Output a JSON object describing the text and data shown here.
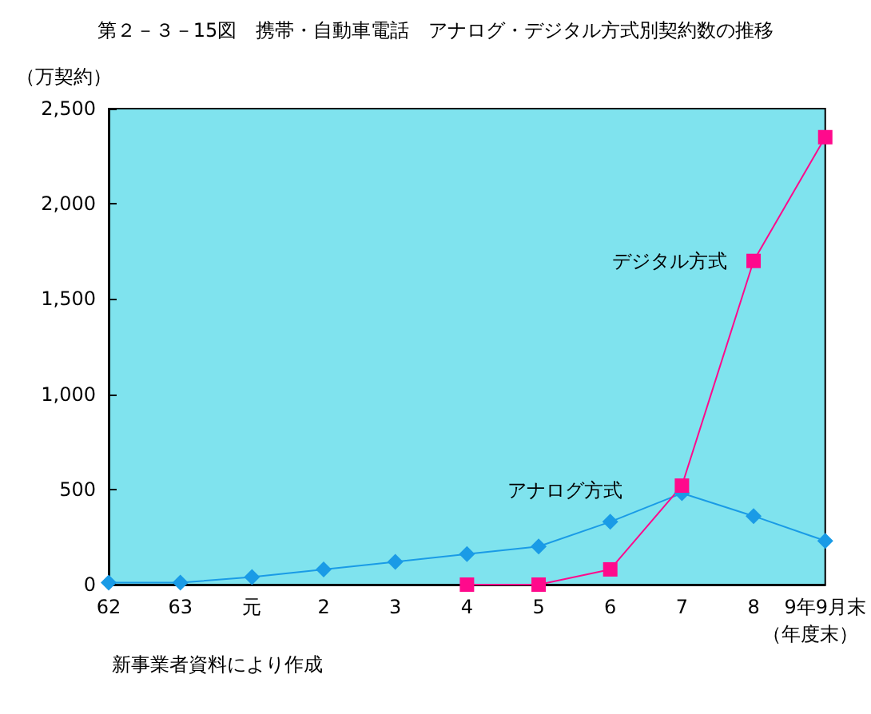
{
  "chart_data": {
    "type": "line",
    "title": "第２－３－15図　携帯・自動車電話　アナログ・デジタル方式別契約数の推移",
    "ylabel": "（万契約）",
    "xlabel": "（年度末）",
    "categories": [
      "62",
      "63",
      "元",
      "2",
      "3",
      "4",
      "5",
      "6",
      "7",
      "8",
      "9年9月末"
    ],
    "series": [
      {
        "name": "アナログ方式",
        "color": "#1a9be6",
        "marker": "diamond",
        "values": [
          10,
          10,
          40,
          80,
          120,
          160,
          200,
          330,
          480,
          360,
          230
        ]
      },
      {
        "name": "デジタル方式",
        "color": "#ff0a8c",
        "marker": "square",
        "values": [
          null,
          null,
          null,
          null,
          null,
          0,
          0,
          80,
          520,
          1700,
          2350
        ]
      }
    ],
    "ylim": [
      0,
      2500
    ],
    "yticks": [
      0,
      {
        "value": 500,
        "label": "500"
      },
      {
        "value": 1000,
        "label": "1,000"
      },
      {
        "value": 1500,
        "label": "1,500"
      },
      {
        "value": 2000,
        "label": "2,000"
      },
      {
        "value": 2500,
        "label": "2,500"
      }
    ],
    "grid": false,
    "annotations": [
      "新事業者資料により作成"
    ]
  }
}
